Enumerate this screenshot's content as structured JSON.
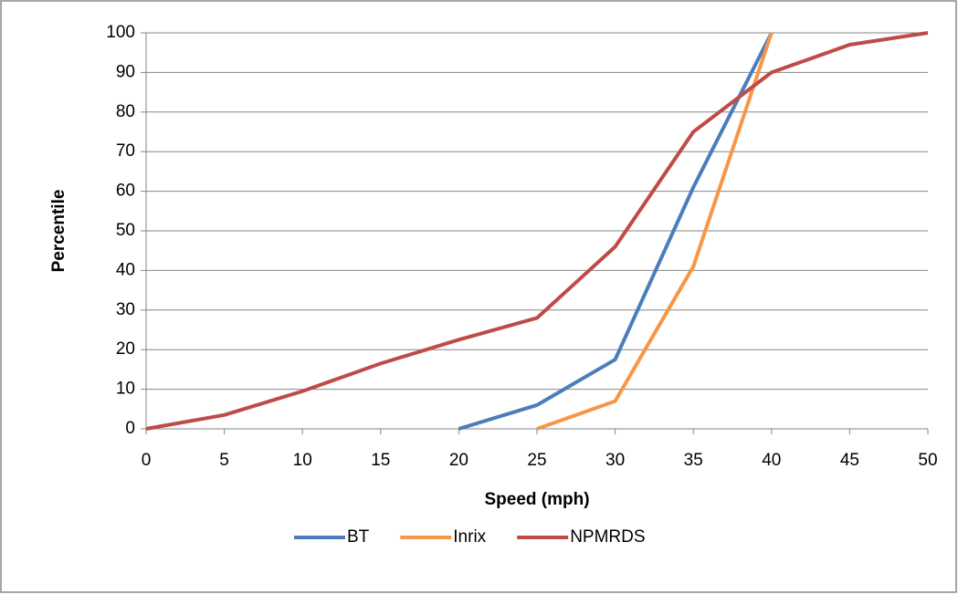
{
  "chart_data": {
    "type": "line",
    "x_label": "Speed (mph)",
    "y_label": "Percentile",
    "x": [
      0,
      5,
      10,
      15,
      20,
      25,
      30,
      35,
      40,
      45,
      50
    ],
    "series": [
      {
        "name": "BT",
        "color": "#4a7ebb",
        "values": [
          null,
          null,
          null,
          null,
          0,
          6,
          17.5,
          61,
          100,
          null,
          null
        ]
      },
      {
        "name": "Inrix",
        "color": "#f79646",
        "values": [
          null,
          null,
          null,
          null,
          null,
          0,
          7,
          41,
          100,
          null,
          null
        ]
      },
      {
        "name": "NPMRDS",
        "color": "#be4b48",
        "values": [
          0,
          3.5,
          9.5,
          16.5,
          22.5,
          28,
          46,
          75,
          90,
          97,
          100
        ]
      }
    ],
    "xlim": [
      0,
      50
    ],
    "xticks": [
      0,
      5,
      10,
      15,
      20,
      25,
      30,
      35,
      40,
      45,
      50
    ],
    "ylim": [
      0,
      100
    ],
    "yticks": [
      0,
      10,
      20,
      30,
      40,
      50,
      60,
      70,
      80,
      90,
      100
    ],
    "grid": true,
    "legend": "bottom"
  }
}
